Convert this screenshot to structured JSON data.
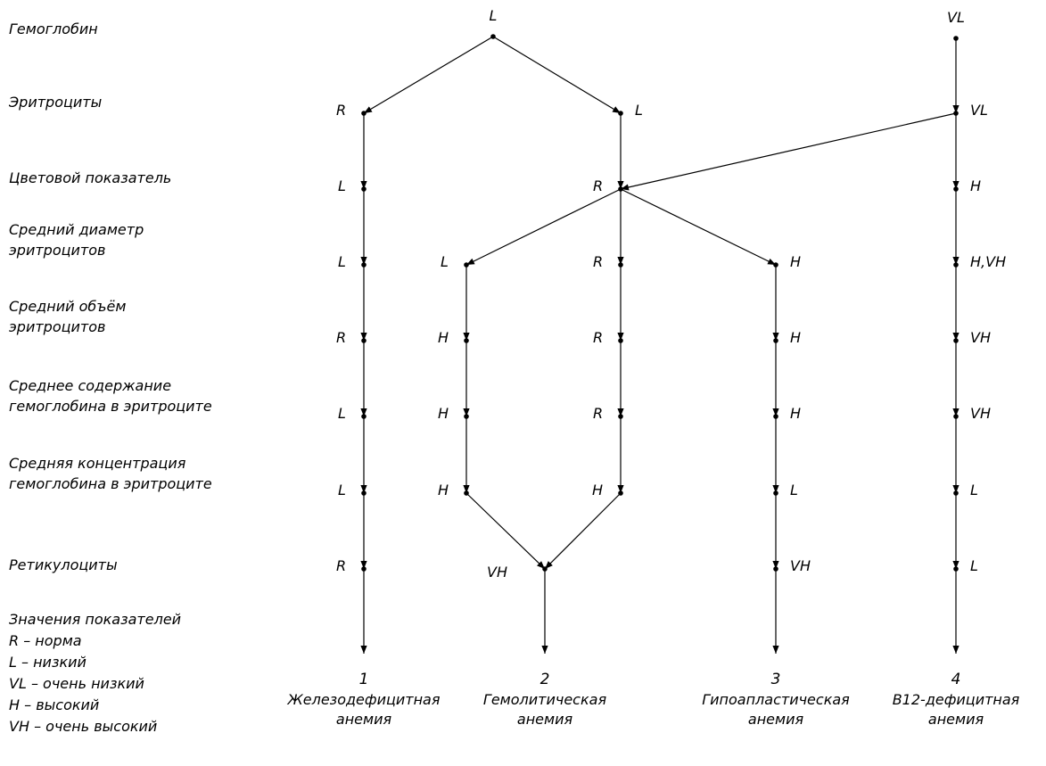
{
  "rows": [
    [
      "Гемоглобин"
    ],
    [
      "Эритроциты"
    ],
    [
      "Цветовой показатель"
    ],
    [
      "Средний диаметр",
      "эритроцитов"
    ],
    [
      "Средний объём",
      "эритроцитов"
    ],
    [
      "Среднее содержание",
      "гемоглобина в эритроците"
    ],
    [
      "Средняя концентрация",
      "гемоглобина в эритроците"
    ],
    [
      "Ретикулоциты"
    ]
  ],
  "legend": {
    "title": "Значения показателей",
    "items": [
      "R – норма",
      "L – низкий",
      "VL – очень низкий",
      "H – высокий",
      "VH – очень высокий"
    ]
  },
  "nodes": [
    {
      "id": "hb_L",
      "label": "L"
    },
    {
      "id": "hb_VL",
      "label": "VL"
    },
    {
      "id": "er_R",
      "label": "R"
    },
    {
      "id": "er_L",
      "label": "L"
    },
    {
      "id": "er_VL",
      "label": "VL"
    },
    {
      "id": "cp_L",
      "label": "L"
    },
    {
      "id": "cp_R",
      "label": "R"
    },
    {
      "id": "cp_H",
      "label": "H"
    },
    {
      "id": "d_L1",
      "label": "L"
    },
    {
      "id": "d_L2",
      "label": "L"
    },
    {
      "id": "d_R",
      "label": "R"
    },
    {
      "id": "d_H",
      "label": "H"
    },
    {
      "id": "d_HVH",
      "label": "H,VH"
    },
    {
      "id": "v_R1",
      "label": "R"
    },
    {
      "id": "v_H2",
      "label": "H"
    },
    {
      "id": "v_R3",
      "label": "R"
    },
    {
      "id": "v_H4",
      "label": "H"
    },
    {
      "id": "v_VH",
      "label": "VH"
    },
    {
      "id": "s_L1",
      "label": "L"
    },
    {
      "id": "s_H2",
      "label": "H"
    },
    {
      "id": "s_R3",
      "label": "R"
    },
    {
      "id": "s_H4",
      "label": "H"
    },
    {
      "id": "s_VH",
      "label": "VH"
    },
    {
      "id": "c_L1",
      "label": "L"
    },
    {
      "id": "c_H2",
      "label": "H"
    },
    {
      "id": "c_H3",
      "label": "H"
    },
    {
      "id": "c_L4",
      "label": "L"
    },
    {
      "id": "c_L5",
      "label": "L"
    },
    {
      "id": "r_R",
      "label": "R"
    },
    {
      "id": "r_VH2",
      "label": "VH"
    },
    {
      "id": "r_VH4",
      "label": "VH"
    },
    {
      "id": "r_L",
      "label": "L"
    }
  ],
  "edges": [
    [
      "hb_L",
      "er_R"
    ],
    [
      "hb_L",
      "er_L"
    ],
    [
      "hb_VL",
      "er_VL"
    ],
    [
      "er_R",
      "cp_L"
    ],
    [
      "er_L",
      "cp_R"
    ],
    [
      "er_VL",
      "cp_R"
    ],
    [
      "er_VL",
      "cp_H"
    ],
    [
      "cp_L",
      "d_L1"
    ],
    [
      "cp_R",
      "d_L2"
    ],
    [
      "cp_R",
      "d_R"
    ],
    [
      "cp_R",
      "d_H"
    ],
    [
      "cp_H",
      "d_HVH"
    ],
    [
      "d_L1",
      "v_R1"
    ],
    [
      "d_L2",
      "v_H2"
    ],
    [
      "d_R",
      "v_R3"
    ],
    [
      "d_H",
      "v_H4"
    ],
    [
      "d_HVH",
      "v_VH"
    ],
    [
      "v_R1",
      "s_L1"
    ],
    [
      "v_H2",
      "s_H2"
    ],
    [
      "v_R3",
      "s_R3"
    ],
    [
      "v_H4",
      "s_H4"
    ],
    [
      "v_VH",
      "s_VH"
    ],
    [
      "s_L1",
      "c_L1"
    ],
    [
      "s_H2",
      "c_H2"
    ],
    [
      "s_R3",
      "c_H3"
    ],
    [
      "s_H4",
      "c_L4"
    ],
    [
      "s_VH",
      "c_L5"
    ],
    [
      "c_L1",
      "r_R"
    ],
    [
      "c_H2",
      "r_VH2"
    ],
    [
      "c_H3",
      "r_VH2"
    ],
    [
      "c_L4",
      "r_VH4"
    ],
    [
      "c_L5",
      "r_L"
    ],
    [
      "r_R",
      "out1"
    ],
    [
      "r_VH2",
      "out2"
    ],
    [
      "r_VH4",
      "out3"
    ],
    [
      "r_L",
      "out4"
    ]
  ],
  "outcomes": [
    {
      "id": "out1",
      "number": "1",
      "name": [
        "Железодефицитная",
        "анемия"
      ]
    },
    {
      "id": "out2",
      "number": "2",
      "name": [
        "Гемолитическая",
        "анемия"
      ]
    },
    {
      "id": "out3",
      "number": "3",
      "name": [
        "Гипоапластическая",
        "анемия"
      ]
    },
    {
      "id": "out4",
      "number": "4",
      "name": [
        "B12-дефицитная",
        "анемия"
      ]
    }
  ]
}
